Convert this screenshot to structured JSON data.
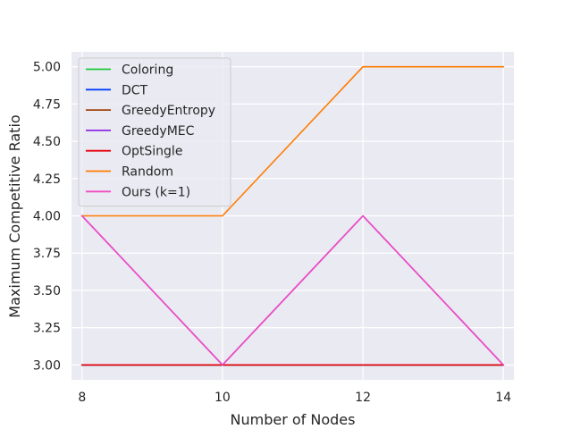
{
  "chart_data": {
    "type": "line",
    "title": "",
    "xlabel": "Number of Nodes",
    "ylabel": "Maximum Competitive Ratio",
    "x": [
      8,
      10,
      12,
      14
    ],
    "xticks": [
      8,
      10,
      12,
      14
    ],
    "yticks": [
      3.0,
      3.25,
      3.5,
      3.75,
      4.0,
      4.25,
      4.5,
      4.75,
      5.0
    ],
    "ytick_labels": [
      "3.00",
      "3.25",
      "3.50",
      "3.75",
      "4.00",
      "4.25",
      "4.50",
      "4.75",
      "5.00"
    ],
    "xlim": [
      7.85,
      14.15
    ],
    "ylim": [
      2.9,
      5.1
    ],
    "grid": true,
    "legend_position": "top-left",
    "series": [
      {
        "name": "Coloring",
        "color": "#1ac938",
        "values": [
          3,
          3,
          3,
          3
        ]
      },
      {
        "name": "DCT",
        "color": "#023eff",
        "values": [
          3,
          3,
          3,
          3
        ]
      },
      {
        "name": "GreedyEntropy",
        "color": "#a2450b",
        "values": [
          3,
          3,
          3,
          3
        ]
      },
      {
        "name": "GreedyMEC",
        "color": "#8b2be2",
        "values": [
          4,
          3,
          4,
          3
        ]
      },
      {
        "name": "OptSingle",
        "color": "#e8000b",
        "values": [
          3,
          3,
          3,
          3
        ]
      },
      {
        "name": "Random",
        "color": "#ff7c00",
        "values": [
          4,
          4,
          5,
          5
        ]
      },
      {
        "name": "Ours (k=1)",
        "color": "#f14cc1",
        "values": [
          4,
          3,
          4,
          3
        ]
      }
    ]
  }
}
